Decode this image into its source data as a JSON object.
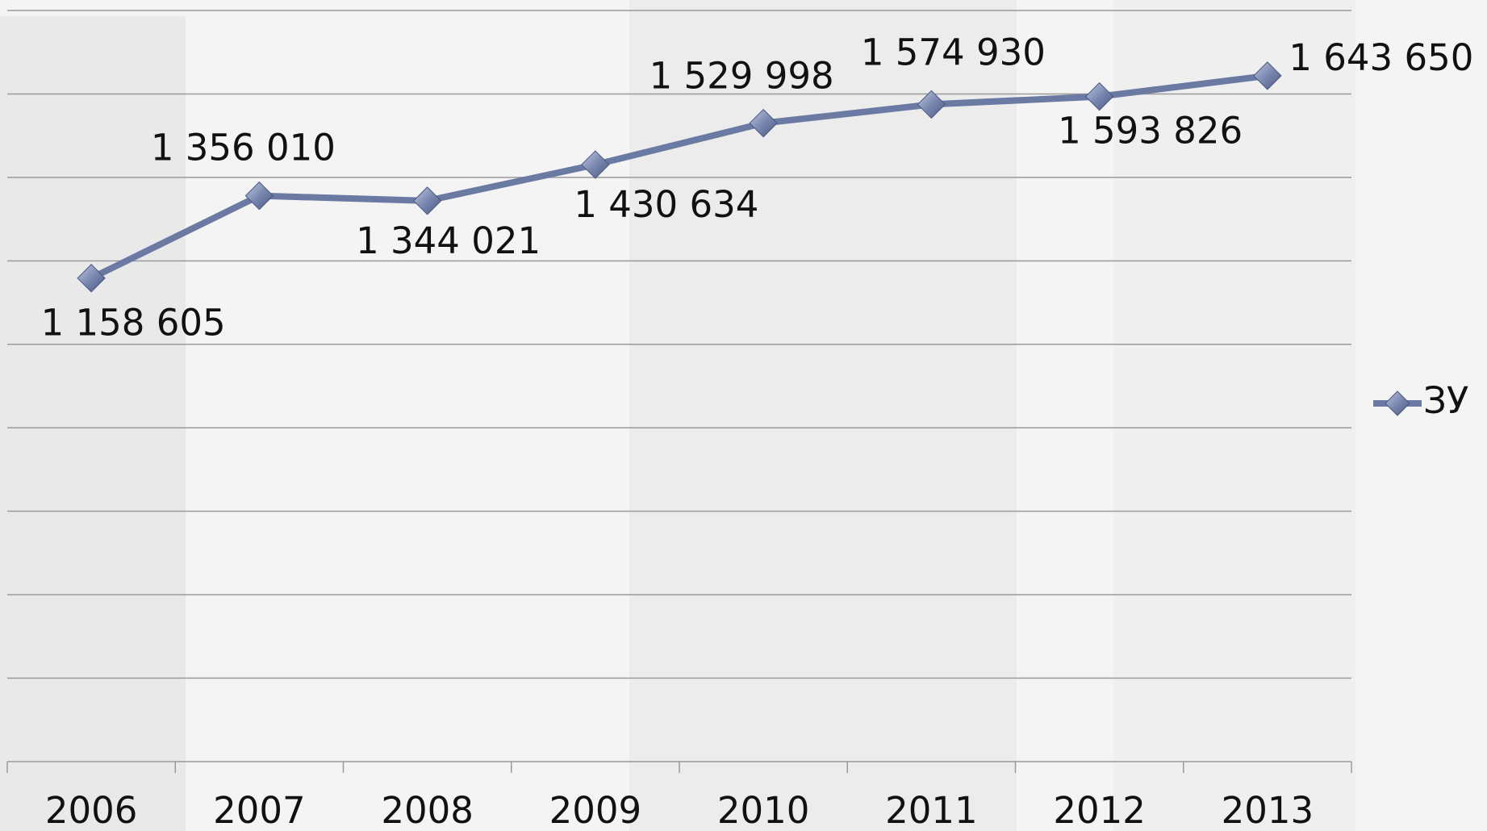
{
  "chart_data": {
    "type": "line",
    "categories": [
      "2006",
      "2007",
      "2008",
      "2009",
      "2010",
      "2011",
      "2012",
      "2013"
    ],
    "series": [
      {
        "name": "ЗУ",
        "color": "#6b7aa3",
        "values": [
          1158605,
          1356010,
          1344021,
          1430634,
          1529998,
          1574930,
          1593826,
          1643650
        ],
        "value_labels": [
          "1 158 605",
          "1 356 010",
          "1 344 021",
          "1 430 634",
          "1 529 998",
          "1 574 930",
          "1 593 826",
          "1 643 650"
        ]
      }
    ],
    "ylim": [
      0,
      1800000
    ],
    "yticks": [
      0,
      200000,
      400000,
      600000,
      800000,
      1000000,
      1200000,
      1400000,
      1600000,
      1800000
    ],
    "grid": true,
    "legend": "right"
  }
}
